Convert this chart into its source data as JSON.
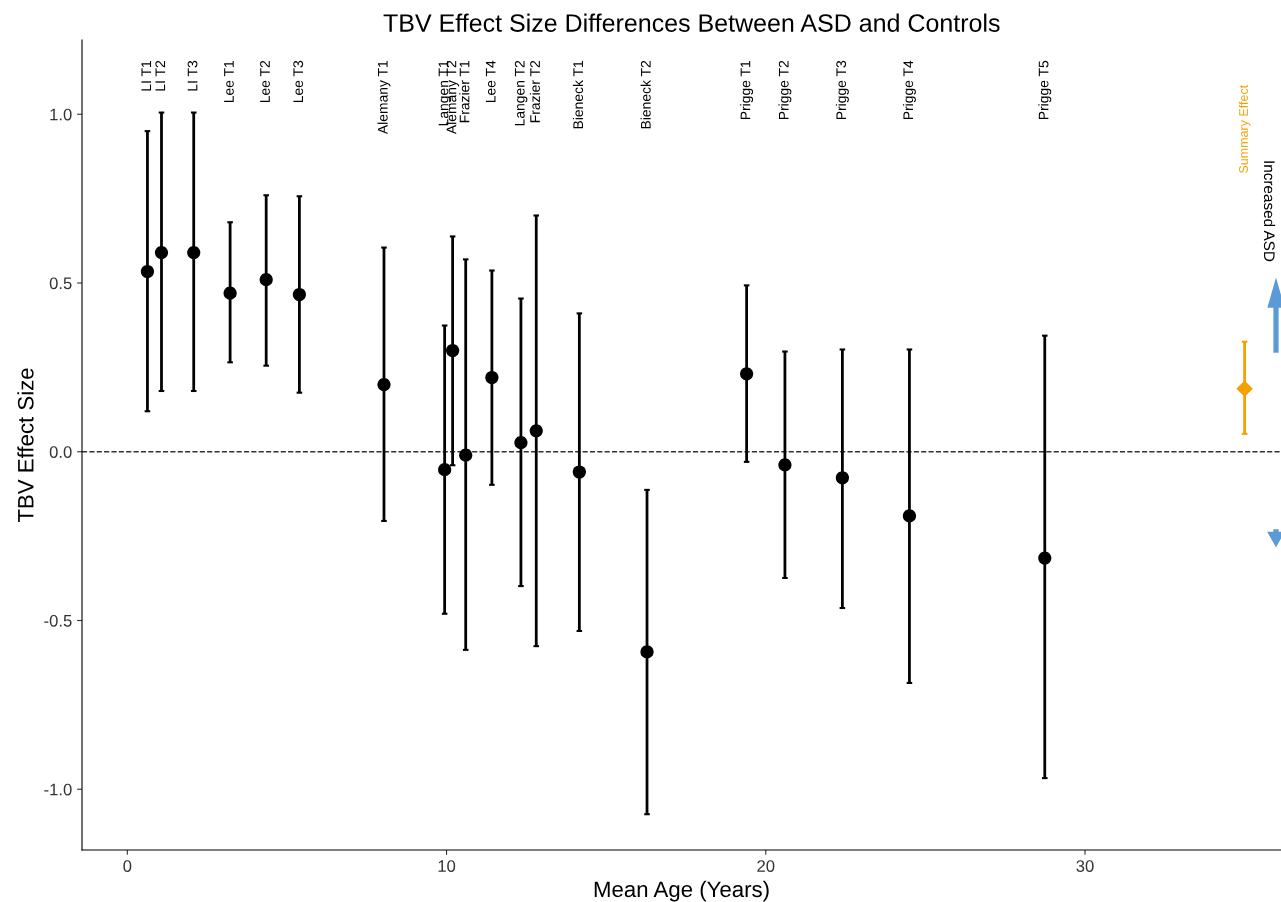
{
  "chart_data": {
    "type": "scatter",
    "title": "TBV Effect Size Differences Between ASD and Controls",
    "xlabel": "Mean Age (Years)",
    "ylabel": "TBV Effect Size",
    "xlim": [
      -1.42,
      36.14
    ],
    "ylim": [
      -1.18,
      1.22
    ],
    "xticks": [
      0,
      10,
      20,
      30
    ],
    "yticks": [
      {
        "value": -1,
        "label": "-1.0"
      },
      {
        "value": -0.5,
        "label": "-0.5"
      },
      {
        "value": 0,
        "label": "0.0"
      },
      {
        "value": 0.5,
        "label": "0.5"
      },
      {
        "value": 1,
        "label": "1.0"
      }
    ],
    "grid": false,
    "marker": "circle",
    "legend": false,
    "ref_lines": [
      {
        "axis": "y",
        "value": 0,
        "line_style": "dashed",
        "color": "#333333"
      }
    ],
    "annotations": [
      "LI T1",
      "LI T2",
      "LI T3",
      "Lee T1",
      "Lee T2",
      "Lee T3",
      "Alemany T1",
      "Langen T1",
      "Alemany T2",
      "Frazier T1",
      "Lee T4",
      "Langen T2",
      "Frazier T2",
      "Bieneck T1",
      "Bieneck T2",
      "Prigge T1",
      "Prigge T2",
      "Prigge T3",
      "Prigge T4",
      "Prigge T5",
      "Increased ASD"
    ],
    "series": [
      {
        "color": "#000000",
        "x": [
          0.63,
          1.07,
          2.08,
          3.22,
          4.35,
          5.39,
          8.04,
          9.94,
          10.19,
          10.6,
          11.42,
          12.33,
          12.81,
          14.16,
          16.28,
          19.4,
          20.6,
          22.4,
          24.5,
          28.74
        ],
        "values": [
          0.534,
          0.59,
          0.59,
          0.47,
          0.51,
          0.466,
          0.199,
          -0.053,
          0.3,
          -0.01,
          0.22,
          0.027,
          0.062,
          -0.06,
          -0.593,
          0.231,
          -0.039,
          -0.077,
          -0.19,
          -0.315
        ],
        "errors": [
          [
            0.12,
            0.95
          ],
          [
            0.18,
            1.005
          ],
          [
            0.18,
            1.005
          ],
          [
            0.265,
            0.68
          ],
          [
            0.255,
            0.76
          ],
          [
            0.175,
            0.757
          ],
          [
            -0.205,
            0.605
          ],
          [
            -0.48,
            0.374
          ],
          [
            -0.04,
            0.638
          ],
          [
            -0.587,
            0.57
          ],
          [
            -0.098,
            0.537
          ],
          [
            -0.398,
            0.454
          ],
          [
            -0.576,
            0.7
          ],
          [
            -0.531,
            0.41
          ],
          [
            -1.074,
            -0.113
          ],
          [
            -0.03,
            0.493
          ],
          [
            -0.374,
            0.297
          ],
          [
            -0.463,
            0.303
          ],
          [
            -0.685,
            0.303
          ],
          [
            -0.967,
            0.344
          ]
        ]
      },
      {
        "name": "Summary Effect",
        "color": "#f5a000",
        "marker": "diamond",
        "x": [
          35.0
        ],
        "values": [
          0.187
        ],
        "errors": [
          [
            0.053,
            0.326
          ]
        ]
      }
    ]
  }
}
